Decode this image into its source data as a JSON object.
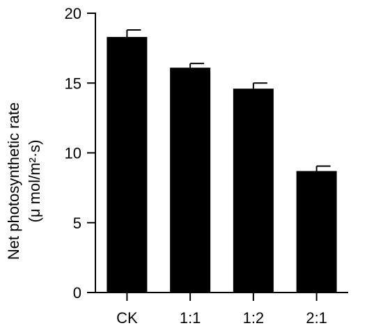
{
  "chart_data": {
    "type": "bar",
    "title": "",
    "xlabel": "",
    "ylabel_line1": "Net photosynthetic rate",
    "ylabel_line2": "(μ mol/m²·s)",
    "categories": [
      "CK",
      "1:1",
      "1:2",
      "2:1"
    ],
    "values": [
      18.3,
      16.1,
      14.6,
      8.7
    ],
    "errors": [
      0.5,
      0.3,
      0.4,
      0.35
    ],
    "ylim": [
      0,
      20
    ],
    "yticks": [
      0,
      5,
      10,
      15,
      20
    ],
    "grid": false,
    "bar_color": "#000000",
    "legend": "none"
  }
}
